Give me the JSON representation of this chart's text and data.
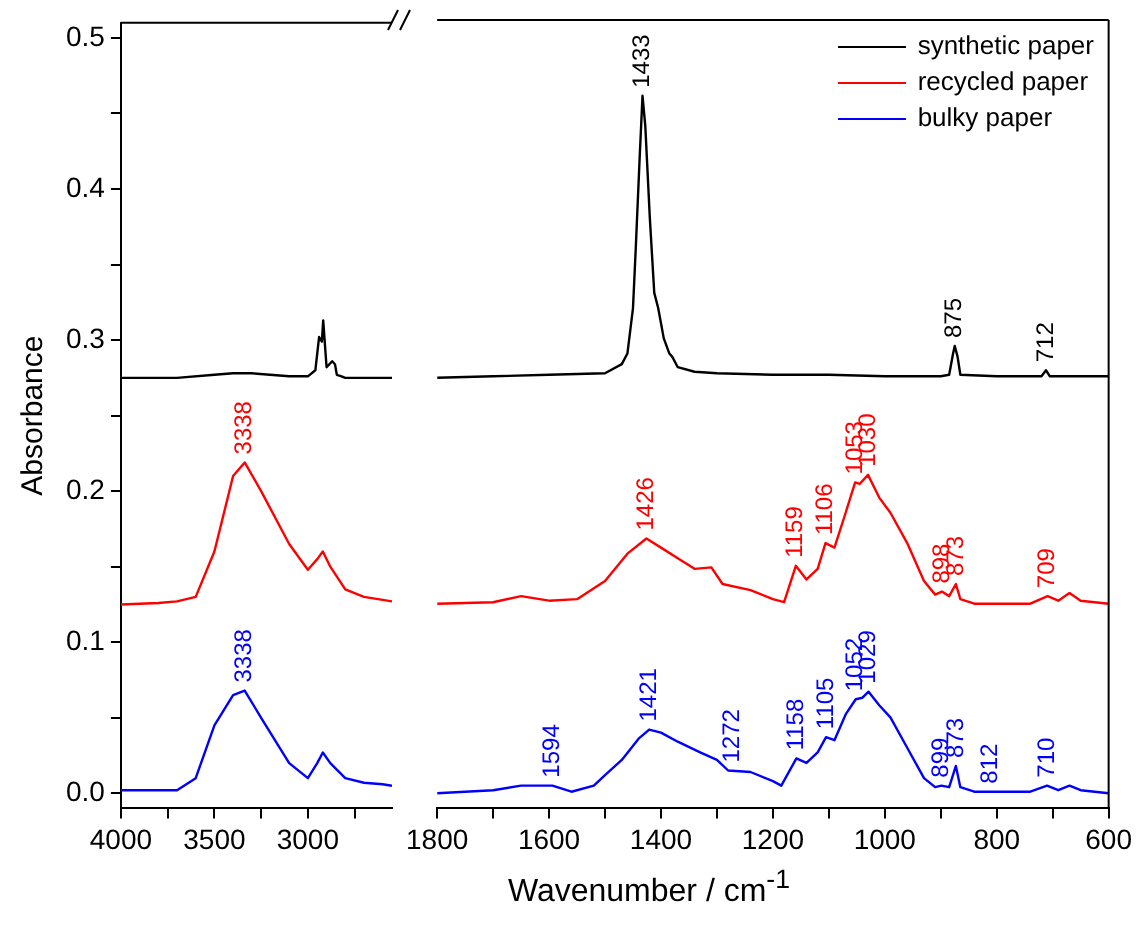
{
  "chart_data": [
    {
      "type": "line",
      "ylabel": "Absorbance",
      "xlim": [
        4000,
        2550
      ],
      "xticks": [
        4000,
        {
          "value": 3750,
          "label": null
        },
        3500,
        {
          "value": 3250,
          "label": null
        },
        3000,
        {
          "value": 2750,
          "label": null
        }
      ],
      "ylim": [
        -0.01,
        0.51
      ],
      "yticks": [
        {
          "value": 0,
          "label": "0.0"
        },
        {
          "value": 0.05,
          "label": null
        },
        0.1,
        {
          "value": 0.15,
          "label": null
        },
        0.2,
        {
          "value": 0.25,
          "label": null
        },
        0.3,
        {
          "value": 0.35,
          "label": null
        },
        0.4,
        {
          "value": 0.45,
          "label": null
        },
        0.5
      ],
      "series": [
        {
          "color": "#000000",
          "x": [
            4000,
            3700,
            3500,
            3400,
            3300,
            3100,
            3000,
            2960,
            2940,
            2925,
            2918,
            2900,
            2870,
            2855,
            2845,
            2820,
            2800,
            2700,
            2600,
            2550
          ],
          "values": [
            0.275,
            0.275,
            0.277,
            0.278,
            0.278,
            0.276,
            0.276,
            0.28,
            0.302,
            0.299,
            0.313,
            0.282,
            0.286,
            0.284,
            0.277,
            0.276,
            0.275,
            0.275,
            0.275,
            0.275
          ]
        },
        {
          "color": "#ff0000",
          "x": [
            4000,
            3800,
            3700,
            3600,
            3500,
            3400,
            3338,
            3250,
            3100,
            3000,
            2950,
            2920,
            2880,
            2800,
            2700,
            2600,
            2550
          ],
          "values": [
            0.125,
            0.126,
            0.127,
            0.13,
            0.16,
            0.21,
            0.219,
            0.2,
            0.165,
            0.148,
            0.155,
            0.16,
            0.15,
            0.135,
            0.13,
            0.128,
            0.127
          ]
        },
        {
          "color": "#0000ff",
          "x": [
            4000,
            3800,
            3700,
            3600,
            3500,
            3400,
            3338,
            3250,
            3100,
            3000,
            2950,
            2920,
            2880,
            2800,
            2700,
            2600,
            2550
          ],
          "values": [
            0.002,
            0.002,
            0.002,
            0.01,
            0.045,
            0.065,
            0.068,
            0.05,
            0.02,
            0.01,
            0.02,
            0.027,
            0.02,
            0.01,
            0.007,
            0.006,
            0.005
          ]
        }
      ],
      "annotations": [
        {
          "text": "3338",
          "x": 3338,
          "y": 0.219
        },
        {
          "text": "3338",
          "x": 3338,
          "y": 0.068
        }
      ]
    },
    {
      "type": "line",
      "xlabel": "Wavenumber / cm$^{-1}$",
      "xlim": [
        1800,
        600
      ],
      "xticks": [
        1800,
        {
          "value": 1700,
          "label": null
        },
        1600,
        {
          "value": 1500,
          "label": null
        },
        1400,
        {
          "value": 1300,
          "label": null
        },
        1200,
        {
          "value": 1100,
          "label": null
        },
        1000,
        {
          "value": 900,
          "label": null
        },
        800,
        {
          "value": 700,
          "label": null
        },
        600
      ],
      "ylim": [
        -0.01,
        0.51
      ],
      "tick_labels": "x",
      "legend": "top right",
      "series": [
        {
          "name": "synthetic paper",
          "color": "#000000",
          "x": [
            1800,
            1700,
            1600,
            1500,
            1470,
            1460,
            1450,
            1445,
            1438,
            1433,
            1428,
            1420,
            1412,
            1405,
            1395,
            1385,
            1380,
            1370,
            1340,
            1300,
            1200,
            1100,
            1000,
            900,
            885,
            878,
            875,
            870,
            865,
            800,
            720,
            712,
            705,
            650,
            600
          ],
          "values": [
            0.274,
            0.275,
            0.276,
            0.277,
            0.283,
            0.29,
            0.32,
            0.36,
            0.42,
            0.46,
            0.44,
            0.38,
            0.33,
            0.32,
            0.3,
            0.29,
            0.288,
            0.281,
            0.278,
            0.277,
            0.276,
            0.276,
            0.275,
            0.275,
            0.276,
            0.29,
            0.295,
            0.288,
            0.276,
            0.275,
            0.275,
            0.279,
            0.275,
            0.275,
            0.275
          ]
        },
        {
          "name": "recycled paper",
          "color": "#ff0000",
          "x": [
            1800,
            1700,
            1650,
            1600,
            1550,
            1500,
            1460,
            1426,
            1400,
            1370,
            1340,
            1310,
            1290,
            1240,
            1200,
            1180,
            1159,
            1140,
            1120,
            1106,
            1090,
            1070,
            1053,
            1045,
            1030,
            1010,
            990,
            960,
            930,
            910,
            898,
            885,
            873,
            865,
            840,
            740,
            709,
            690,
            670,
            650,
            600
          ],
          "values": [
            0.125,
            0.126,
            0.13,
            0.127,
            0.128,
            0.14,
            0.158,
            0.168,
            0.162,
            0.155,
            0.148,
            0.149,
            0.138,
            0.134,
            0.128,
            0.126,
            0.15,
            0.141,
            0.148,
            0.165,
            0.162,
            0.185,
            0.205,
            0.204,
            0.21,
            0.195,
            0.185,
            0.165,
            0.14,
            0.131,
            0.133,
            0.13,
            0.138,
            0.128,
            0.125,
            0.125,
            0.13,
            0.127,
            0.132,
            0.127,
            0.125
          ]
        },
        {
          "name": "bulky paper",
          "color": "#0000ff",
          "x": [
            1800,
            1700,
            1650,
            1594,
            1560,
            1520,
            1500,
            1470,
            1440,
            1421,
            1400,
            1370,
            1330,
            1300,
            1280,
            1240,
            1200,
            1185,
            1158,
            1140,
            1120,
            1105,
            1090,
            1070,
            1052,
            1040,
            1029,
            1010,
            990,
            960,
            930,
            910,
            899,
            885,
            873,
            865,
            840,
            812,
            740,
            710,
            690,
            670,
            650,
            600
          ],
          "values": [
            0.0,
            0.002,
            0.005,
            0.005,
            0.001,
            0.005,
            0.012,
            0.022,
            0.036,
            0.042,
            0.04,
            0.034,
            0.027,
            0.022,
            0.015,
            0.014,
            0.008,
            0.005,
            0.023,
            0.02,
            0.027,
            0.037,
            0.035,
            0.052,
            0.062,
            0.063,
            0.067,
            0.058,
            0.05,
            0.03,
            0.01,
            0.004,
            0.005,
            0.004,
            0.018,
            0.004,
            0.001,
            0.001,
            0.001,
            0.005,
            0.002,
            0.005,
            0.002,
            0.0
          ]
        }
      ],
      "annotations": [
        {
          "text": "1433",
          "x": 1433,
          "y": 0.46
        },
        {
          "text": "875",
          "x": 875,
          "y": 0.295
        },
        {
          "text": "712",
          "x": 712,
          "y": 0.279
        },
        {
          "text": "1426",
          "x": 1426,
          "y": 0.168
        },
        {
          "text": "1159",
          "x": 1159,
          "y": 0.15
        },
        {
          "text": "1106",
          "x": 1106,
          "y": 0.165
        },
        {
          "text": "1053",
          "x": 1053,
          "y": 0.205
        },
        {
          "text": "1030",
          "x": 1030,
          "y": 0.21
        },
        {
          "text": "898",
          "x": 898,
          "y": 0.133
        },
        {
          "text": "873",
          "x": 873,
          "y": 0.138
        },
        {
          "text": "709",
          "x": 709,
          "y": 0.13
        },
        {
          "text": "1594",
          "x": 1594,
          "y": 0.005
        },
        {
          "text": "1421",
          "x": 1421,
          "y": 0.042
        },
        {
          "text": "1272",
          "x": 1272,
          "y": 0.015
        },
        {
          "text": "1158",
          "x": 1158,
          "y": 0.023
        },
        {
          "text": "1105",
          "x": 1105,
          "y": 0.037
        },
        {
          "text": "1052",
          "x": 1052,
          "y": 0.062
        },
        {
          "text": "1029",
          "x": 1029,
          "y": 0.067
        },
        {
          "text": "899",
          "x": 899,
          "y": 0.005
        },
        {
          "text": "873",
          "x": 873,
          "y": 0.018
        },
        {
          "text": "812",
          "x": 812,
          "y": 0.001
        },
        {
          "text": "710",
          "x": 710,
          "y": 0.005
        }
      ]
    }
  ]
}
